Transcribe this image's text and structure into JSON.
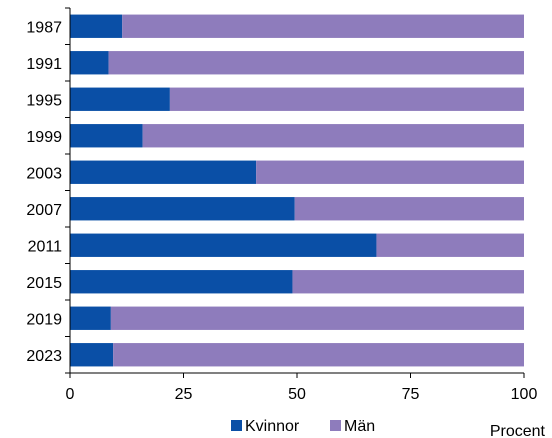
{
  "chart_data": {
    "type": "bar",
    "orientation": "horizontal",
    "stacked": true,
    "categories": [
      "1987",
      "1991",
      "1995",
      "1999",
      "2003",
      "2007",
      "2011",
      "2015",
      "2019",
      "2023"
    ],
    "series": [
      {
        "name": "Kvinnor",
        "values": [
          11.5,
          8.5,
          22.0,
          16.0,
          41.0,
          49.5,
          67.5,
          49.0,
          9.0,
          9.5
        ]
      },
      {
        "name": "Män",
        "values": [
          88.5,
          91.5,
          78.0,
          84.0,
          59.0,
          50.5,
          32.5,
          51.0,
          91.0,
          90.5
        ]
      }
    ],
    "colors": {
      "Kvinnor": "#0a4fa6",
      "Män": "#8e7cbc"
    },
    "xticks": [
      "0",
      "25",
      "50",
      "75",
      "100"
    ],
    "xlim": [
      0,
      100
    ],
    "unit_label": "Procent",
    "legend_position": "bottom",
    "grid": false
  }
}
